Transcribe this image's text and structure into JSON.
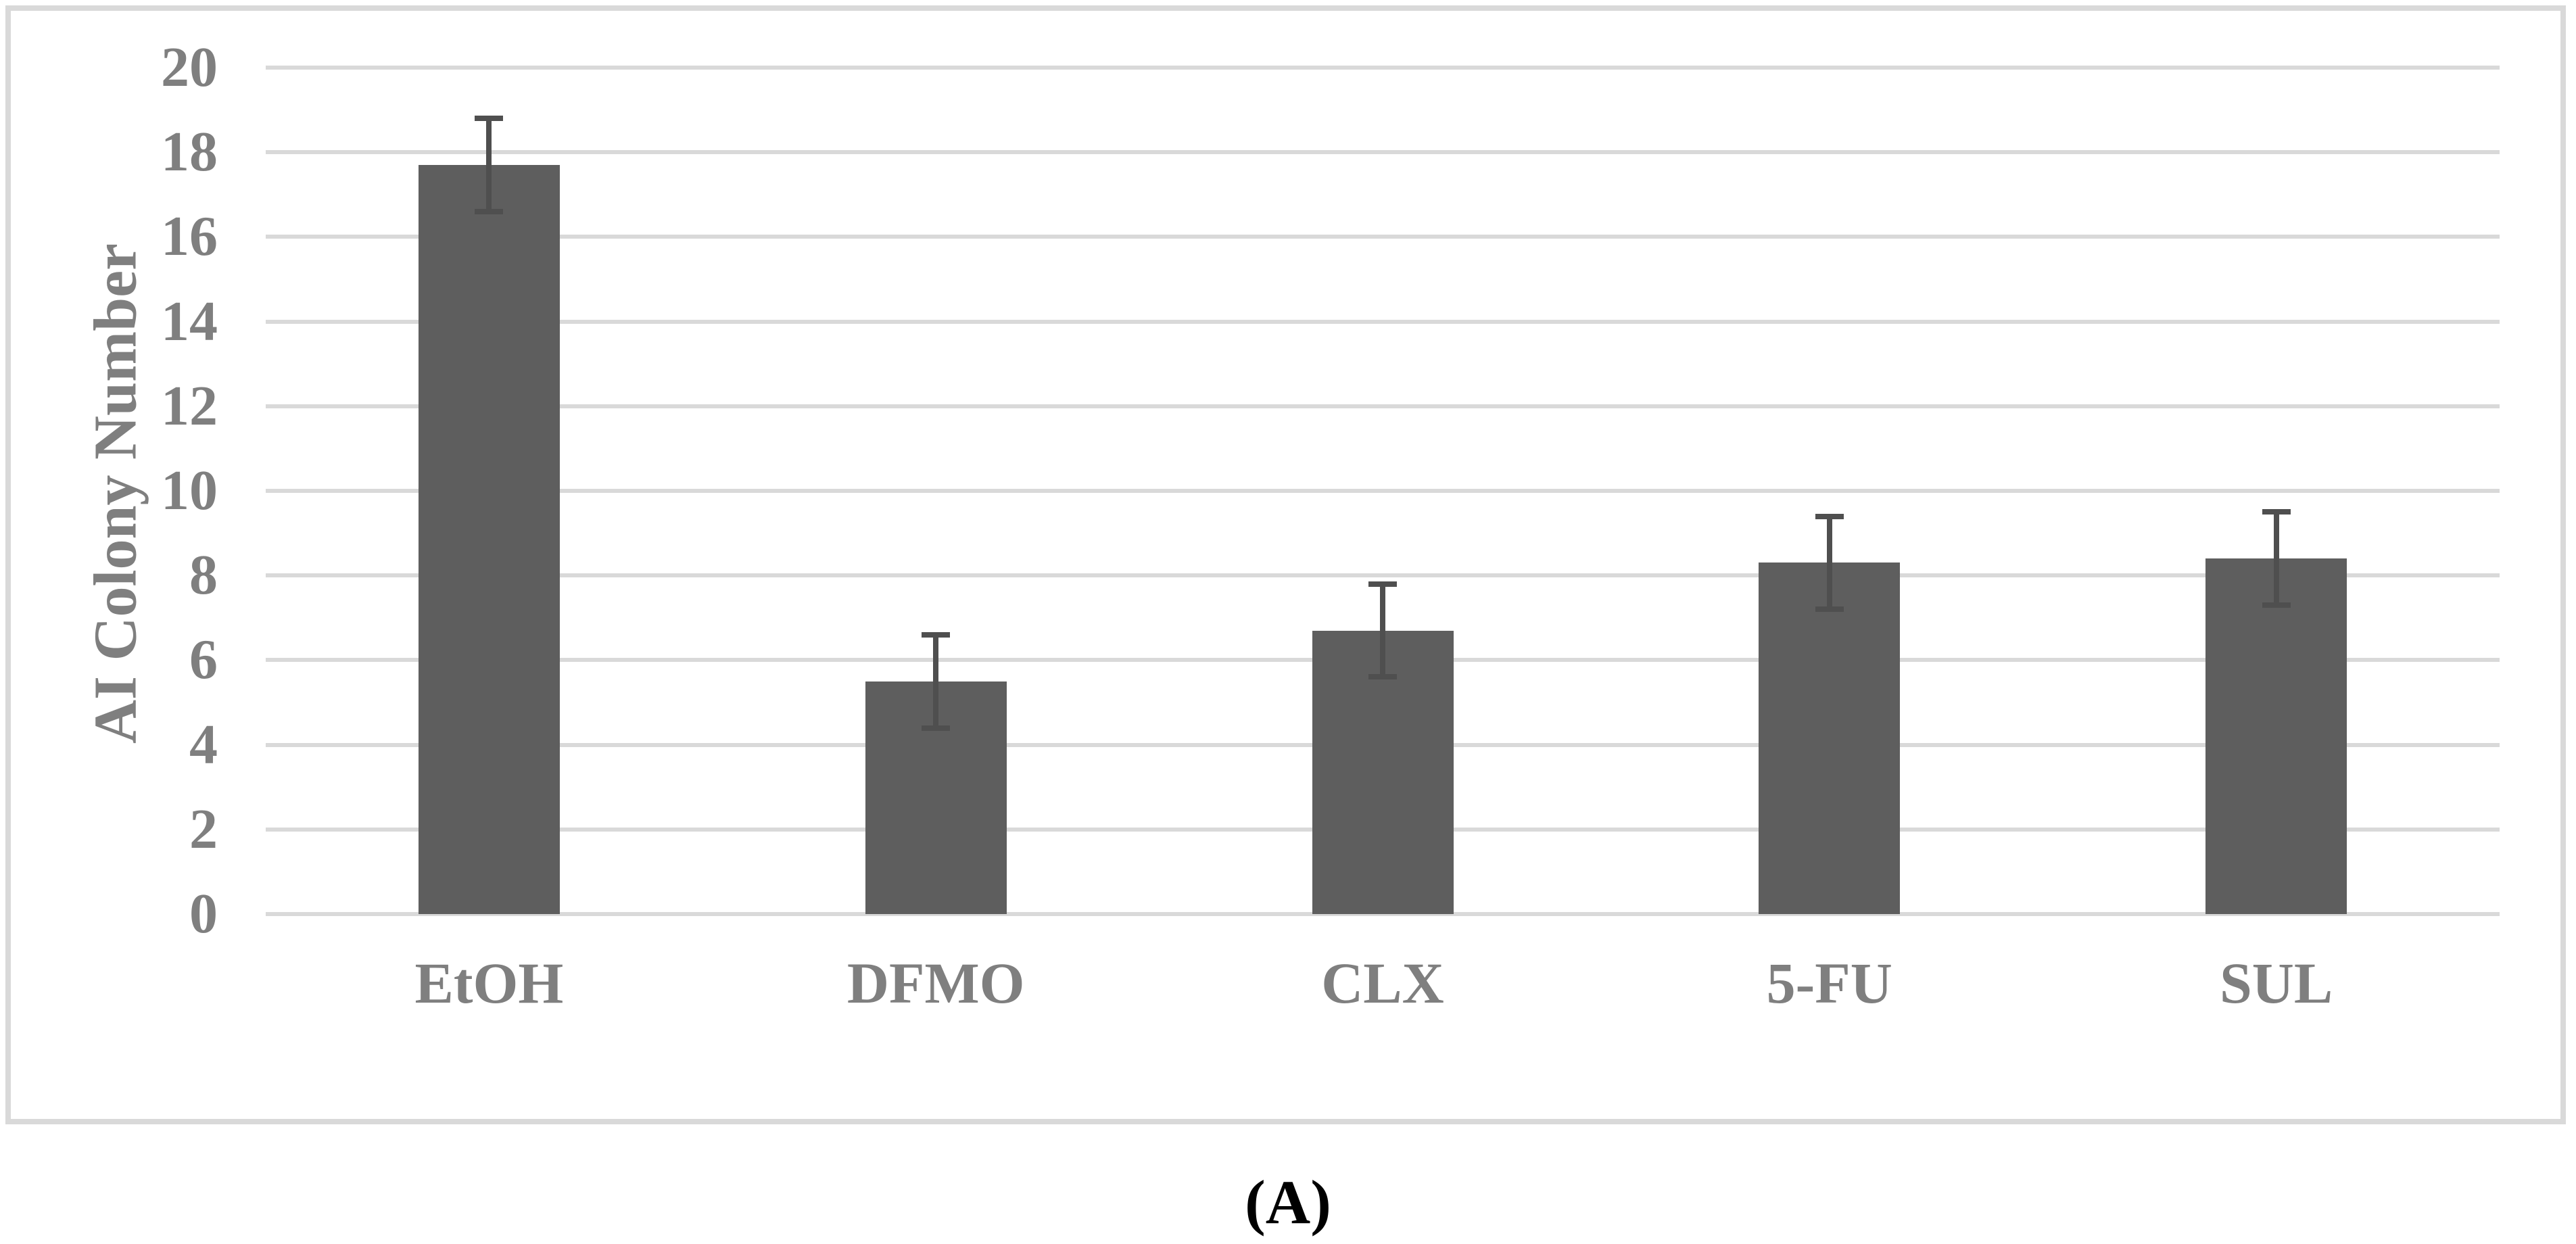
{
  "figure": {
    "caption": "(A)",
    "background_color": "#ffffff",
    "frame_border_color": "#d9d9d9"
  },
  "chart_data": {
    "type": "bar",
    "title": "",
    "xlabel": "",
    "ylabel": "AI Colony Number",
    "categories": [
      "EtOH",
      "DFMO",
      "CLX",
      "5-FU",
      "SUL"
    ],
    "values": [
      17.7,
      5.5,
      6.7,
      8.3,
      8.4
    ],
    "error_bars": [
      1.1,
      1.1,
      1.1,
      1.1,
      1.1
    ],
    "ylim": [
      0,
      20
    ],
    "yticks": [
      0,
      2,
      4,
      6,
      8,
      10,
      12,
      14,
      16,
      18,
      20
    ],
    "grid": true,
    "legend_position": "none",
    "bar_color": "#5e5e5e",
    "error_bar_color": "#4f4f4f",
    "gridline_color": "#d9d9d9",
    "axis_text_color": "#7f7f7f"
  }
}
